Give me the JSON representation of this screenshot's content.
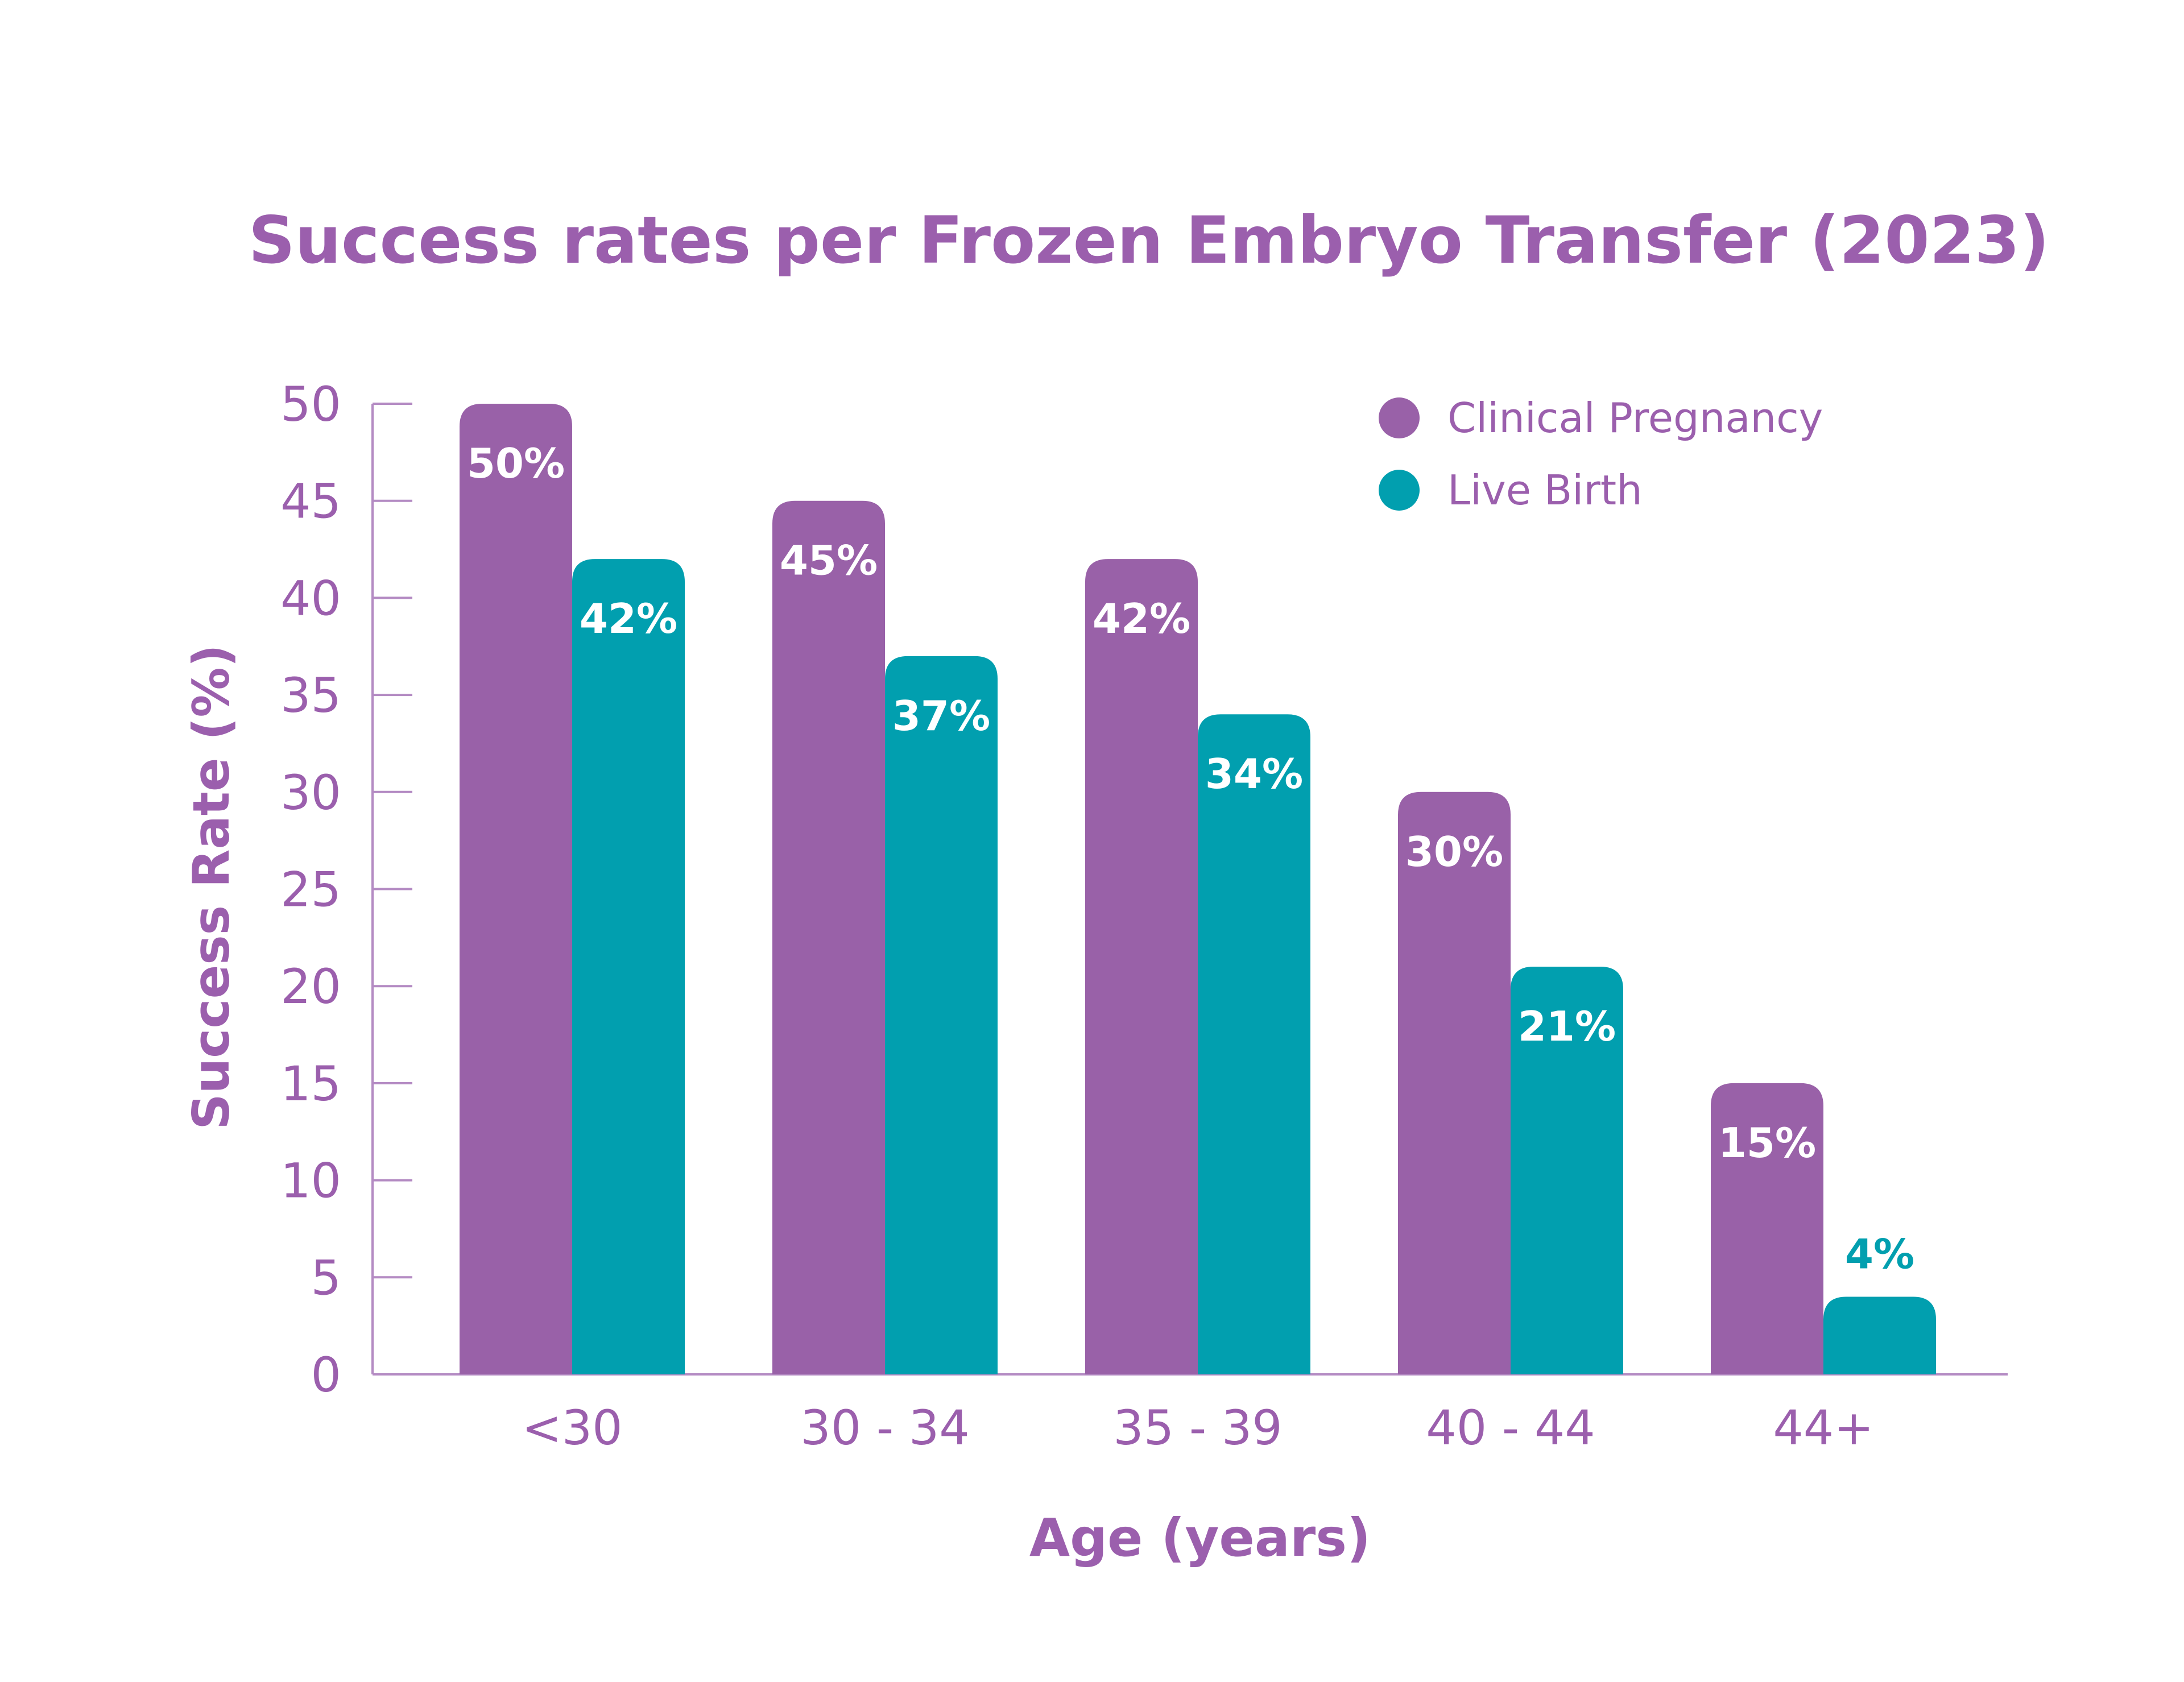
{
  "colors": {
    "clinical_pregnancy": "#9961a8",
    "live_birth": "#019faf",
    "text_purple": "#9b5fad",
    "axis": "#b48bc3",
    "label_on_bar": "#ffffff"
  },
  "chart_data": {
    "type": "bar",
    "title": "Success rates per Frozen Embryo Transfer (2023)",
    "xlabel": "Age (years)",
    "ylabel": "Success Rate (%)",
    "ylim": [
      0,
      50
    ],
    "yticks": [
      0,
      5,
      10,
      15,
      20,
      25,
      30,
      35,
      40,
      45,
      50
    ],
    "categories": [
      "<30",
      "30 - 34",
      "35 - 39",
      "40 - 44",
      "44+"
    ],
    "series": [
      {
        "name": "Clinical Pregnancy",
        "color": "#9961a8",
        "values": [
          50,
          45,
          42,
          30,
          15
        ],
        "labels": [
          "50%",
          "45%",
          "42%",
          "30%",
          "15%"
        ]
      },
      {
        "name": "Live Birth",
        "color": "#019faf",
        "values": [
          42,
          37,
          34,
          21,
          4
        ],
        "labels": [
          "42%",
          "37%",
          "34%",
          "21%",
          "4%"
        ]
      }
    ],
    "legend_position": "top-right",
    "grid": false
  }
}
